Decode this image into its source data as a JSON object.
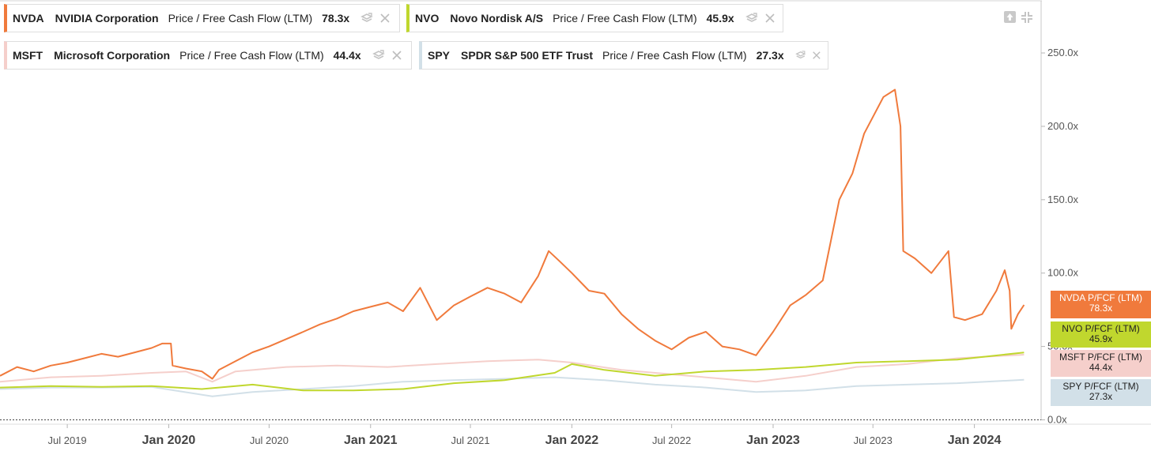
{
  "legend": [
    {
      "ticker": "NVDA",
      "name": "NVIDIA Corporation",
      "metric": "Price / Free Cash Flow (LTM)",
      "value": "78.3x"
    },
    {
      "ticker": "NVO",
      "name": "Novo Nordisk A/S",
      "metric": "Price / Free Cash Flow (LTM)",
      "value": "45.9x"
    },
    {
      "ticker": "MSFT",
      "name": "Microsoft Corporation",
      "metric": "Price / Free Cash Flow (LTM)",
      "value": "44.4x"
    },
    {
      "ticker": "SPY",
      "name": "SPDR S&P 500 ETF Trust",
      "metric": "Price / Free Cash Flow (LTM)",
      "value": "27.3x"
    }
  ],
  "tags": [
    {
      "label": "NVDA P/FCF (LTM)",
      "value": "78.3x",
      "bg": "#f07a3c",
      "fg": "#ffffff"
    },
    {
      "label": "NVO P/FCF (LTM)",
      "value": "45.9x",
      "bg": "#c0d72e",
      "fg": "#222222"
    },
    {
      "label": "MSFT P/FCF (LTM)",
      "value": "44.4x",
      "bg": "#f5cfcb",
      "fg": "#222222"
    },
    {
      "label": "SPY P/FCF (LTM)",
      "value": "27.3x",
      "bg": "#d2e0e8",
      "fg": "#222222"
    }
  ],
  "chart_data": {
    "type": "line",
    "x_ticks": [
      {
        "label": "Jul 2019",
        "date": "2019-07-01",
        "major": false
      },
      {
        "label": "Jan 2020",
        "date": "2020-01-01",
        "major": true
      },
      {
        "label": "Jul 2020",
        "date": "2020-07-01",
        "major": false
      },
      {
        "label": "Jan 2021",
        "date": "2021-01-01",
        "major": true
      },
      {
        "label": "Jul 2021",
        "date": "2021-07-01",
        "major": false
      },
      {
        "label": "Jan 2022",
        "date": "2022-01-01",
        "major": true
      },
      {
        "label": "Jul 2022",
        "date": "2022-07-01",
        "major": false
      },
      {
        "label": "Jan 2023",
        "date": "2023-01-01",
        "major": true
      },
      {
        "label": "Jul 2023",
        "date": "2023-07-01",
        "major": false
      },
      {
        "label": "Jan 2024",
        "date": "2024-01-01",
        "major": true
      }
    ],
    "y_ticks": [
      {
        "label": "0.0x",
        "value": 0
      },
      {
        "label": "50.0x",
        "value": 50
      },
      {
        "label": "100.0x",
        "value": 100
      },
      {
        "label": "150.0x",
        "value": 150
      },
      {
        "label": "200.0x",
        "value": 200
      },
      {
        "label": "250.0x",
        "value": 250
      }
    ],
    "x_range": [
      "2019-03-01",
      "2024-05-01"
    ],
    "y_range": [
      0,
      285
    ],
    "series": [
      {
        "name": "NVDA P/FCF (LTM)",
        "color": "#f07a3c",
        "points": [
          [
            "2019-03-01",
            30
          ],
          [
            "2019-04-01",
            36
          ],
          [
            "2019-05-01",
            33
          ],
          [
            "2019-06-01",
            37
          ],
          [
            "2019-07-01",
            39
          ],
          [
            "2019-08-01",
            42
          ],
          [
            "2019-09-01",
            45
          ],
          [
            "2019-10-01",
            43
          ],
          [
            "2019-11-01",
            46
          ],
          [
            "2019-12-01",
            49
          ],
          [
            "2019-12-20",
            52
          ],
          [
            "2020-01-05",
            52
          ],
          [
            "2020-01-08",
            37
          ],
          [
            "2020-02-01",
            35
          ],
          [
            "2020-03-01",
            33
          ],
          [
            "2020-03-20",
            28
          ],
          [
            "2020-04-01",
            34
          ],
          [
            "2020-05-01",
            40
          ],
          [
            "2020-06-01",
            46
          ],
          [
            "2020-07-01",
            50
          ],
          [
            "2020-08-01",
            55
          ],
          [
            "2020-09-01",
            60
          ],
          [
            "2020-10-01",
            65
          ],
          [
            "2020-11-01",
            69
          ],
          [
            "2020-12-01",
            74
          ],
          [
            "2021-01-01",
            77
          ],
          [
            "2021-02-01",
            80
          ],
          [
            "2021-03-01",
            74
          ],
          [
            "2021-04-01",
            90
          ],
          [
            "2021-05-01",
            68
          ],
          [
            "2021-06-01",
            78
          ],
          [
            "2021-07-01",
            84
          ],
          [
            "2021-08-01",
            90
          ],
          [
            "2021-09-01",
            86
          ],
          [
            "2021-10-01",
            80
          ],
          [
            "2021-11-01",
            98
          ],
          [
            "2021-11-20",
            115
          ],
          [
            "2021-12-10",
            108
          ],
          [
            "2022-01-01",
            100
          ],
          [
            "2022-02-01",
            88
          ],
          [
            "2022-03-01",
            86
          ],
          [
            "2022-04-01",
            72
          ],
          [
            "2022-05-01",
            62
          ],
          [
            "2022-06-01",
            54
          ],
          [
            "2022-07-01",
            48
          ],
          [
            "2022-08-01",
            56
          ],
          [
            "2022-09-01",
            60
          ],
          [
            "2022-10-01",
            50
          ],
          [
            "2022-11-01",
            48
          ],
          [
            "2022-12-01",
            44
          ],
          [
            "2023-01-01",
            60
          ],
          [
            "2023-02-01",
            78
          ],
          [
            "2023-03-01",
            85
          ],
          [
            "2023-04-01",
            95
          ],
          [
            "2023-05-01",
            150
          ],
          [
            "2023-05-25",
            168
          ],
          [
            "2023-06-15",
            195
          ],
          [
            "2023-07-20",
            220
          ],
          [
            "2023-08-10",
            225
          ],
          [
            "2023-08-20",
            200
          ],
          [
            "2023-08-25",
            115
          ],
          [
            "2023-09-15",
            110
          ],
          [
            "2023-10-15",
            100
          ],
          [
            "2023-11-15",
            115
          ],
          [
            "2023-11-25",
            70
          ],
          [
            "2023-12-15",
            68
          ],
          [
            "2024-01-15",
            72
          ],
          [
            "2024-02-10",
            88
          ],
          [
            "2024-02-25",
            102
          ],
          [
            "2024-03-05",
            88
          ],
          [
            "2024-03-08",
            62
          ],
          [
            "2024-03-20",
            72
          ],
          [
            "2024-03-31",
            78.3
          ]
        ]
      },
      {
        "name": "NVO P/FCF (LTM)",
        "color": "#c0d72e",
        "points": [
          [
            "2019-03-01",
            22
          ],
          [
            "2019-06-01",
            23
          ],
          [
            "2019-09-01",
            22.5
          ],
          [
            "2019-12-01",
            23
          ],
          [
            "2020-03-01",
            21
          ],
          [
            "2020-06-01",
            24
          ],
          [
            "2020-09-01",
            20
          ],
          [
            "2020-12-01",
            20
          ],
          [
            "2021-03-01",
            21
          ],
          [
            "2021-06-01",
            25
          ],
          [
            "2021-09-01",
            27
          ],
          [
            "2021-12-01",
            32
          ],
          [
            "2022-01-01",
            38
          ],
          [
            "2022-03-01",
            34
          ],
          [
            "2022-06-01",
            30
          ],
          [
            "2022-09-01",
            33
          ],
          [
            "2022-12-01",
            34
          ],
          [
            "2023-03-01",
            36
          ],
          [
            "2023-06-01",
            39
          ],
          [
            "2023-09-01",
            40
          ],
          [
            "2023-12-01",
            41
          ],
          [
            "2024-03-31",
            45.9
          ]
        ]
      },
      {
        "name": "MSFT P/FCF (LTM)",
        "color": "#f5cfcb",
        "points": [
          [
            "2019-03-01",
            26
          ],
          [
            "2019-06-01",
            29
          ],
          [
            "2019-09-01",
            30
          ],
          [
            "2019-12-01",
            32
          ],
          [
            "2020-02-01",
            33
          ],
          [
            "2020-03-20",
            26
          ],
          [
            "2020-05-01",
            33
          ],
          [
            "2020-08-01",
            36
          ],
          [
            "2020-11-01",
            37
          ],
          [
            "2021-02-01",
            36
          ],
          [
            "2021-05-01",
            38
          ],
          [
            "2021-08-01",
            40
          ],
          [
            "2021-11-01",
            41
          ],
          [
            "2022-01-01",
            39
          ],
          [
            "2022-04-01",
            34
          ],
          [
            "2022-07-01",
            31
          ],
          [
            "2022-10-01",
            28
          ],
          [
            "2022-12-01",
            26
          ],
          [
            "2023-03-01",
            30
          ],
          [
            "2023-06-01",
            36
          ],
          [
            "2023-09-01",
            38
          ],
          [
            "2023-12-01",
            42
          ],
          [
            "2024-03-31",
            44.4
          ]
        ]
      },
      {
        "name": "SPY P/FCF (LTM)",
        "color": "#d2e0e8",
        "points": [
          [
            "2019-03-01",
            21
          ],
          [
            "2019-06-01",
            22
          ],
          [
            "2019-09-01",
            22
          ],
          [
            "2019-12-01",
            22.5
          ],
          [
            "2020-03-20",
            16
          ],
          [
            "2020-06-01",
            19
          ],
          [
            "2020-09-01",
            21
          ],
          [
            "2020-12-01",
            23
          ],
          [
            "2021-03-01",
            26
          ],
          [
            "2021-06-01",
            27
          ],
          [
            "2021-09-01",
            28
          ],
          [
            "2021-12-01",
            29
          ],
          [
            "2022-03-01",
            27
          ],
          [
            "2022-06-01",
            24
          ],
          [
            "2022-09-01",
            22
          ],
          [
            "2022-12-01",
            19
          ],
          [
            "2023-03-01",
            20
          ],
          [
            "2023-06-01",
            23
          ],
          [
            "2023-09-01",
            24
          ],
          [
            "2023-12-01",
            25
          ],
          [
            "2024-03-31",
            27.3
          ]
        ]
      }
    ]
  }
}
